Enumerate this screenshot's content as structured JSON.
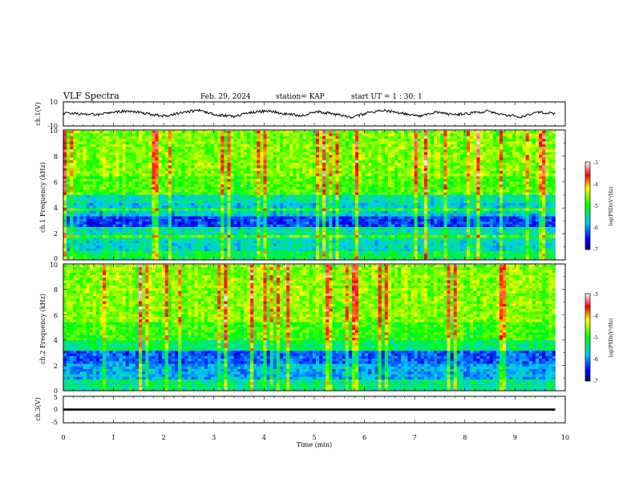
{
  "header": {
    "title": "VLF Spectra",
    "date": "Feb. 29, 2024",
    "station": "station= KAP",
    "start_ut": "start  UT =   1 : 30: 1"
  },
  "chart_data": [
    {
      "type": "line",
      "name": "ch1-waveform",
      "ylabel": "ch.1(V)",
      "ylim": [
        -10,
        10
      ],
      "yticks": [
        "10",
        "-10"
      ],
      "xlim": [
        0,
        10
      ],
      "x_extent_min": 9.8,
      "line_color": "#000000",
      "approx_envelope": [
        0.8,
        0.2,
        -0.5,
        1.5,
        2.5,
        0.0,
        -1.8,
        1.2,
        3.0,
        -0.5,
        -2.2,
        0.9,
        2.6,
        0.3,
        -1.4,
        2.0,
        -0.3,
        -2.8,
        1.0,
        2.8,
        0.4,
        -1.9,
        1.6,
        -0.8,
        0.6,
        2.3,
        -0.9,
        -2.4,
        1.8,
        0.1
      ]
    },
    {
      "type": "heatmap",
      "name": "ch1-spectrogram",
      "ylabel": "ch.1 Frequency (kHz)",
      "ylim": [
        0,
        10
      ],
      "yticks": [
        "0",
        "2",
        "4",
        "6",
        "8",
        "10"
      ],
      "xlim": [
        0,
        10
      ],
      "x_extent_min": 9.8,
      "colorbar": {
        "label": "log(PSD)(V²/Hz)",
        "ticks": [
          "-3",
          "-4",
          "-5",
          "-6",
          "-7"
        ],
        "range": [
          -7,
          -3
        ]
      },
      "band_profile_khz": [
        {
          "f": [
            0,
            0.6
          ],
          "level": -5.2
        },
        {
          "f": [
            0.6,
            1.5
          ],
          "level": -5.6
        },
        {
          "f": [
            1.5,
            2.6
          ],
          "level": -5.5
        },
        {
          "f": [
            2.6,
            3.4
          ],
          "level": -6.3
        },
        {
          "f": [
            3.4,
            4.4
          ],
          "level": -5.7
        },
        {
          "f": [
            4.4,
            5.0
          ],
          "level": -5.5
        },
        {
          "f": [
            5.0,
            6.5
          ],
          "level": -4.8
        },
        {
          "f": [
            6.5,
            10.0
          ],
          "level": -4.6
        }
      ]
    },
    {
      "type": "heatmap",
      "name": "ch2-spectrogram",
      "ylabel": "ch.2 Frequency (kHz)",
      "ylim": [
        0,
        10
      ],
      "yticks": [
        "0",
        "2",
        "4",
        "6",
        "8",
        "10"
      ],
      "xlim": [
        0,
        10
      ],
      "x_extent_min": 9.8,
      "colorbar": {
        "label": "log(PSD)(V²/Hz)",
        "ticks": [
          "-3",
          "-4",
          "-5",
          "-6",
          "-7"
        ],
        "range": [
          -7,
          -3
        ]
      },
      "band_profile_khz": [
        {
          "f": [
            0,
            0.8
          ],
          "level": -5.4
        },
        {
          "f": [
            0.8,
            2.0
          ],
          "level": -5.9
        },
        {
          "f": [
            2.0,
            3.2
          ],
          "level": -6.2
        },
        {
          "f": [
            3.2,
            4.0
          ],
          "level": -5.3
        },
        {
          "f": [
            4.0,
            5.5
          ],
          "level": -4.9
        },
        {
          "f": [
            5.5,
            10.0
          ],
          "level": -4.6
        }
      ]
    },
    {
      "type": "line",
      "name": "ch3-waveform",
      "ylabel": "ch.3(V)",
      "ylim": [
        -5,
        5
      ],
      "yticks": [
        "5",
        "0",
        "-5"
      ],
      "xlim": [
        0,
        10
      ],
      "x_extent_min": 9.8,
      "line_color": "#000000",
      "band": [
        -0.4,
        0.4
      ],
      "xlabel": "Time  (min)",
      "xticks": [
        "0",
        "1",
        "2",
        "3",
        "4",
        "5",
        "6",
        "7",
        "8",
        "9",
        "10"
      ]
    }
  ]
}
